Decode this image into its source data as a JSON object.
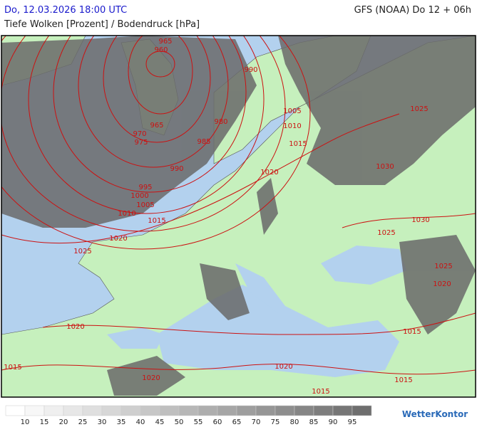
{
  "header": {
    "datetime": "Do, 12.03.2026 18:00 UTC",
    "model": "GFS (NOAA) Do 12 + 06h",
    "subtitle": "Tiefe Wolken [Prozent] / Bodendruck [hPa]"
  },
  "isobar_labels": [
    "965",
    "960",
    "990",
    "1005",
    "1025",
    "965",
    "980",
    "970",
    "975",
    "985",
    "1010",
    "1015",
    "990",
    "1030",
    "1020",
    "995",
    "1000",
    "1005",
    "1010",
    "1015",
    "1030",
    "1020",
    "1025",
    "1025",
    "1025",
    "1020",
    "1020",
    "1015",
    "1015",
    "1020",
    "1020",
    "1015",
    "1015"
  ],
  "legend": {
    "labels": [
      "10",
      "15",
      "20",
      "25",
      "30",
      "35",
      "40",
      "45",
      "50",
      "55",
      "60",
      "65",
      "70",
      "75",
      "80",
      "85",
      "90",
      "95"
    ]
  },
  "logo": "WetterKontor"
}
